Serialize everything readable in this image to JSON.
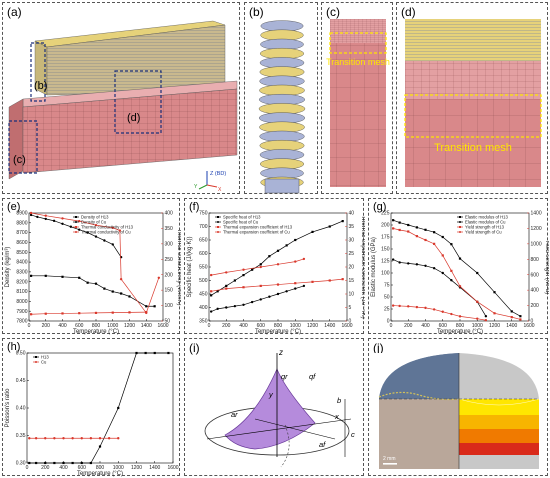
{
  "panels": {
    "a": {
      "label": "(a)",
      "sub_b": "(b)",
      "sub_c": "(c)",
      "sub_d": "(d)",
      "axes": {
        "z": "Z (BD)",
        "y": "Y",
        "x": "X"
      }
    },
    "b": {
      "label": "(b)"
    },
    "c": {
      "label": "(c)",
      "text": "Transition mesh"
    },
    "d": {
      "label": "(d)",
      "text": "Transition mesh"
    },
    "i": {
      "label": "(i)",
      "symbols": {
        "z": "z",
        "qr": "qr",
        "qf": "qf",
        "y": "y",
        "x": "x",
        "b": "b",
        "c": "c",
        "ar": "ar",
        "af": "af"
      }
    },
    "j": {
      "label": "(j)",
      "scale": "2 mm"
    }
  },
  "colors": {
    "mesh_pink": "#d9888a",
    "mesh_yellow": "#e6d27a",
    "mesh_blue": "#a9b3d6",
    "highlight": "#ffe600",
    "black_series": "#000000",
    "red_series": "#d9382c",
    "heat_purple": "#b58bdc"
  },
  "chart_data": [
    {
      "id": "e",
      "label": "(e)",
      "type": "line",
      "xlabel": "Temperature (°C)",
      "ylabel": "Density (kg/m³)",
      "ylabel_right": "Thermal conductivity (W/mK)",
      "x_ticks": [
        "0",
        "200",
        "400",
        "600",
        "800",
        "1000",
        "1200",
        "1400",
        "1600"
      ],
      "y_ticks": [
        "7800",
        "7900",
        "8000",
        "8100",
        "8200",
        "8300",
        "8400",
        "8500",
        "8600",
        "8700",
        "8800",
        "8900"
      ],
      "y2_ticks": [
        "50",
        "100",
        "150",
        "200",
        "250",
        "300",
        "350",
        "400"
      ],
      "xlim": [
        0,
        1600
      ],
      "ylim": [
        7800,
        8900
      ],
      "y2lim": [
        0,
        400
      ],
      "legend": [
        "Density of H13",
        "Density of Cu",
        "Thermal conductivity of H13",
        "Thermal conductivity of Cu"
      ],
      "series": [
        {
          "name": "Density of H13",
          "axis": "left",
          "color": "#000000",
          "x": [
            25,
            200,
            400,
            600,
            700,
            800,
            900,
            1000,
            1100,
            1200,
            1400,
            1500
          ],
          "y": [
            8260,
            8260,
            8250,
            8240,
            8190,
            8180,
            8130,
            8100,
            8080,
            8050,
            7950,
            7950
          ]
        },
        {
          "name": "Density of Cu",
          "axis": "left",
          "color": "#000000",
          "x": [
            25,
            100,
            200,
            300,
            400,
            500,
            600,
            700,
            800,
            900,
            1000,
            1100
          ],
          "y": [
            8880,
            8860,
            8840,
            8820,
            8790,
            8760,
            8730,
            8700,
            8660,
            8620,
            8580,
            8450
          ]
        },
        {
          "name": "Thermal conductivity of H13",
          "axis": "right",
          "color": "#d9382c",
          "x": [
            25,
            200,
            400,
            600,
            800,
            1000,
            1200,
            1400
          ],
          "y": [
            25,
            27,
            28,
            29,
            30,
            31,
            32,
            33
          ]
        },
        {
          "name": "Thermal conductivity of Cu",
          "axis": "right",
          "color": "#d9382c",
          "x": [
            25,
            200,
            400,
            600,
            800,
            1000,
            1085,
            1100,
            1400,
            1550
          ],
          "y": [
            400,
            390,
            380,
            370,
            355,
            345,
            335,
            155,
            30,
            160
          ]
        }
      ]
    },
    {
      "id": "f",
      "label": "(f)",
      "type": "line",
      "xlabel": "Temperature (°C)",
      "ylabel": "Specific heat (J/(kg·K))",
      "ylabel_right": "Thermal expansion coefficient (10⁻⁶/K)",
      "x_ticks": [
        "0",
        "200",
        "400",
        "600",
        "800",
        "1000",
        "1200",
        "1400",
        "1600"
      ],
      "y_ticks": [
        "350",
        "400",
        "450",
        "500",
        "550",
        "600",
        "650",
        "700",
        "750"
      ],
      "y2_ticks": [
        "0",
        "5",
        "10",
        "15",
        "20",
        "25",
        "30",
        "35",
        "40"
      ],
      "xlim": [
        0,
        1600
      ],
      "ylim": [
        350,
        750
      ],
      "y2lim": [
        0,
        40
      ],
      "legend": [
        "Specific heat of H13",
        "Specific heat of Cu",
        "Thermal expansion coefficient of H13",
        "Thermal expansion coefficient of Cu"
      ],
      "series": [
        {
          "name": "Specific heat of H13",
          "axis": "left",
          "color": "#000000",
          "x": [
            25,
            100,
            200,
            300,
            400,
            500,
            600,
            700,
            800,
            900,
            1000,
            1200,
            1400,
            1550
          ],
          "y": [
            445,
            460,
            480,
            500,
            520,
            540,
            560,
            590,
            610,
            630,
            650,
            680,
            700,
            720
          ]
        },
        {
          "name": "Specific heat of Cu",
          "axis": "left",
          "color": "#000000",
          "x": [
            25,
            100,
            200,
            300,
            400,
            500,
            600,
            700,
            800,
            900,
            1000,
            1100
          ],
          "y": [
            385,
            395,
            400,
            405,
            410,
            420,
            430,
            440,
            450,
            460,
            470,
            480
          ]
        },
        {
          "name": "Thermal expansion coefficient of H13",
          "axis": "right",
          "color": "#d9382c",
          "x": [
            25,
            200,
            400,
            600,
            800,
            1000,
            1200,
            1400,
            1550
          ],
          "y": [
            11,
            12,
            12.5,
            13,
            13.5,
            14,
            14.5,
            15,
            15.5
          ]
        },
        {
          "name": "Thermal expansion coefficient of Cu",
          "axis": "right",
          "color": "#d9382c",
          "x": [
            25,
            200,
            400,
            600,
            800,
            1000,
            1100
          ],
          "y": [
            17,
            18,
            19,
            20,
            21,
            22,
            23
          ]
        }
      ]
    },
    {
      "id": "g",
      "label": "(g)",
      "type": "line",
      "xlabel": "Temperature (°C)",
      "ylabel": "Elastic modulus (GPa)",
      "ylabel_right": "Yield strength (MPa)",
      "x_ticks": [
        "0",
        "200",
        "400",
        "600",
        "800",
        "1000",
        "1200",
        "1400",
        "1600"
      ],
      "y_ticks": [
        "0",
        "25",
        "50",
        "75",
        "100",
        "125",
        "150",
        "175",
        "200",
        "225"
      ],
      "y2_ticks": [
        "0",
        "200",
        "400",
        "600",
        "800",
        "1000",
        "1200",
        "1400"
      ],
      "xlim": [
        0,
        1600
      ],
      "ylim": [
        0,
        225
      ],
      "y2lim": [
        0,
        1400
      ],
      "legend": [
        "Elastic modulus of H13",
        "Elastic modulus of Cu",
        "Yield strength of H13",
        "Yield strength of Cu"
      ],
      "series": [
        {
          "name": "Elastic modulus of H13",
          "axis": "left",
          "color": "#000000",
          "x": [
            25,
            100,
            200,
            300,
            400,
            500,
            600,
            700,
            800,
            1000,
            1200,
            1400,
            1500
          ],
          "y": [
            210,
            205,
            200,
            195,
            190,
            185,
            175,
            160,
            130,
            100,
            60,
            20,
            10
          ]
        },
        {
          "name": "Elastic modulus of Cu",
          "axis": "left",
          "color": "#000000",
          "x": [
            25,
            100,
            200,
            300,
            400,
            500,
            600,
            700,
            800,
            1000,
            1100
          ],
          "y": [
            128,
            122,
            120,
            118,
            115,
            110,
            100,
            85,
            70,
            40,
            10
          ]
        },
        {
          "name": "Yield strength of H13",
          "axis": "right",
          "color": "#d9382c",
          "x": [
            25,
            100,
            200,
            300,
            400,
            500,
            600,
            700,
            800,
            1000,
            1200,
            1400,
            1500
          ],
          "y": [
            1200,
            1180,
            1160,
            1100,
            1050,
            1000,
            850,
            650,
            450,
            250,
            100,
            50,
            20
          ]
        },
        {
          "name": "Yield strength of Cu",
          "axis": "right",
          "color": "#d9382c",
          "x": [
            25,
            100,
            200,
            300,
            400,
            500,
            600,
            700,
            800,
            1000,
            1100
          ],
          "y": [
            200,
            195,
            190,
            180,
            170,
            150,
            120,
            90,
            60,
            30,
            10
          ]
        }
      ]
    },
    {
      "id": "h",
      "label": "(h)",
      "type": "line",
      "xlabel": "Temperature (°C)",
      "ylabel": "Poisson's ratio",
      "x_ticks": [
        "0",
        "200",
        "400",
        "600",
        "800",
        "1000",
        "1200",
        "1400",
        "1600"
      ],
      "y_ticks": [
        "0.30",
        "0.35",
        "0.40",
        "0.45",
        "0.50"
      ],
      "xlim": [
        0,
        1600
      ],
      "ylim": [
        0.3,
        0.5
      ],
      "legend": [
        "H13",
        "Cu"
      ],
      "series": [
        {
          "name": "H13",
          "color": "#000000",
          "x": [
            25,
            100,
            200,
            300,
            400,
            500,
            600,
            700,
            800,
            1000,
            1200,
            1300,
            1400,
            1550
          ],
          "y": [
            0.3,
            0.3,
            0.3,
            0.3,
            0.3,
            0.3,
            0.3,
            0.3,
            0.33,
            0.4,
            0.5,
            0.5,
            0.5,
            0.5
          ]
        },
        {
          "name": "Cu",
          "color": "#d9382c",
          "x": [
            25,
            100,
            200,
            300,
            400,
            500,
            600,
            700,
            800,
            900,
            1000
          ],
          "y": [
            0.345,
            0.345,
            0.345,
            0.345,
            0.345,
            0.345,
            0.345,
            0.345,
            0.345,
            0.345,
            0.345
          ]
        }
      ]
    }
  ]
}
